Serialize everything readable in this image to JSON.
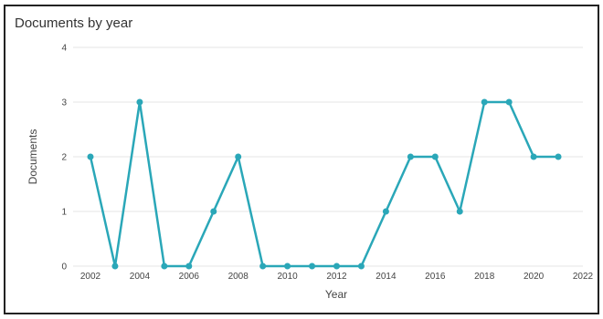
{
  "chart_data": {
    "type": "line",
    "title": "Documents by year",
    "xlabel": "Year",
    "ylabel": "Documents",
    "xlim": [
      2002,
      2022
    ],
    "ylim": [
      0,
      4
    ],
    "x_ticks": [
      "2002",
      "2004",
      "2006",
      "2008",
      "2010",
      "2012",
      "2014",
      "2016",
      "2018",
      "2020",
      "2022"
    ],
    "y_ticks": [
      "0",
      "1",
      "2",
      "3",
      "4"
    ],
    "grid": true,
    "series": [
      {
        "x": [
          2002,
          2003,
          2004,
          2005,
          2006,
          2007,
          2008,
          2009,
          2010,
          2011,
          2012,
          2013,
          2014,
          2015,
          2016,
          2017,
          2018,
          2019,
          2020,
          2021
        ],
        "values": [
          2,
          0,
          3,
          0,
          0,
          1,
          2,
          0,
          0,
          0,
          0,
          0,
          1,
          2,
          2,
          1,
          3,
          3,
          2,
          2
        ],
        "color": "#2aa7b8"
      }
    ]
  }
}
